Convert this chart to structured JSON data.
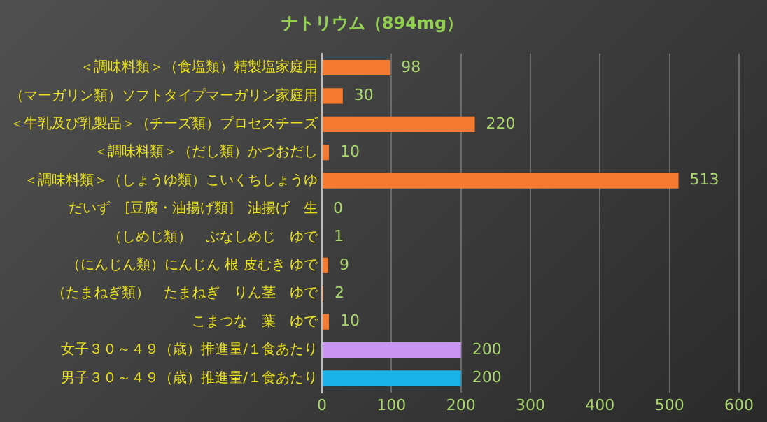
{
  "chart_data": {
    "type": "bar",
    "orientation": "horizontal",
    "title": "ナトリウム（894mg）",
    "categories": [
      "＜調味料類＞（食塩類）精製塩家庭用",
      "（マーガリン類）ソフトタイプマーガリン家庭用",
      "＜牛乳及び乳製品＞（チーズ類）プロセスチーズ",
      "＜調味料類＞（だし類）かつおだし",
      "＜調味料類＞（しょうゆ類）こいくちしょうゆ",
      "だいず　[豆腐・油揚げ類]　油揚げ　生",
      "（しめじ類）　ぶなしめじ　ゆで",
      "（にんじん類）にんじん 根 皮むき ゆで",
      "（たまねぎ類）　たまねぎ　りん茎　ゆで",
      "こまつな　葉　ゆで",
      "女子３０～４９（歳）推進量/１食あたり",
      "男子３０～４９（歳）推進量/１食あたり"
    ],
    "values": [
      98,
      30,
      220,
      10,
      513,
      0,
      1,
      9,
      2,
      10,
      200,
      200
    ],
    "colors": [
      "#f47a30",
      "#f47a30",
      "#f47a30",
      "#f47a30",
      "#f47a30",
      "#f47a30",
      "#f47a30",
      "#f47a30",
      "#f47a30",
      "#f47a30",
      "#c896f0",
      "#1ab0e8"
    ],
    "xlim": [
      0,
      600
    ],
    "xticks": [
      0,
      100,
      200,
      300,
      400,
      500,
      600
    ],
    "grid": "x",
    "data_labels": true,
    "legend": false
  }
}
